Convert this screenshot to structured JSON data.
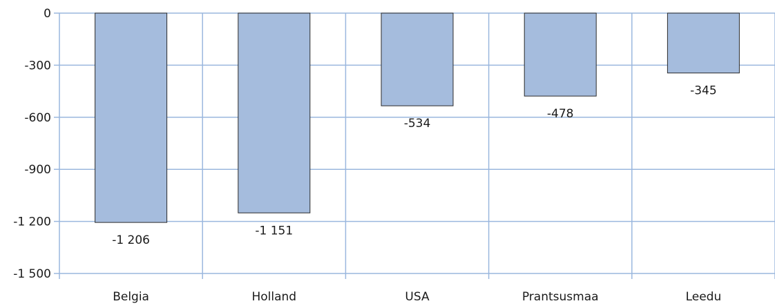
{
  "chart_data": {
    "type": "bar",
    "categories": [
      "Belgia",
      "Holland",
      "USA",
      "Prantsusmaa",
      "Leedu"
    ],
    "values": [
      -1206,
      -1151,
      -534,
      -478,
      -345
    ],
    "data_labels": [
      "-1 206",
      "-1 151",
      "-534",
      "-478",
      "-345"
    ],
    "title": "",
    "xlabel": "",
    "ylabel": "",
    "ylim": [
      -1500,
      0
    ],
    "y_ticks": [
      0,
      -300,
      -600,
      -900,
      -1200,
      -1500
    ],
    "y_tick_labels": [
      "0",
      "-300",
      "-600",
      "-900",
      "-1 200",
      "-1 500"
    ],
    "grid": true,
    "legend": "none",
    "colors": {
      "bar_fill": "#a5bcdd",
      "bar_stroke": "#2a2a2a",
      "grid": "#9ab7de"
    }
  }
}
